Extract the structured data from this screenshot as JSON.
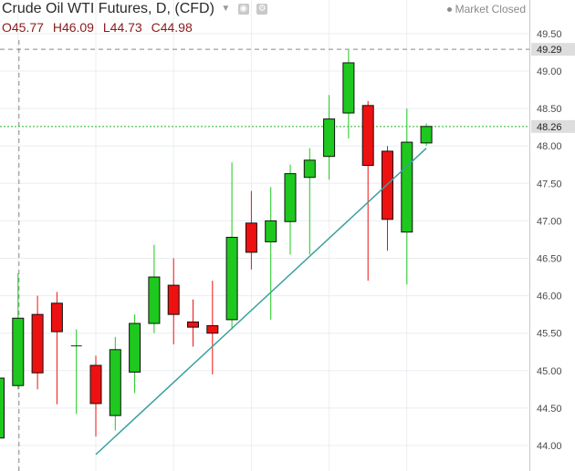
{
  "header": {
    "title": "Crude Oil WTI Futures, D, (CFD)",
    "open": "O45.77",
    "high": "H46.09",
    "low": "L44.73",
    "close": "C44.98",
    "status": "Market Closed"
  },
  "colors": {
    "up": "#1ec81e",
    "down": "#ee1111",
    "grid": "#e9eef2",
    "trendline": "#3aa0a0",
    "horizontal_line": "#22b822",
    "crosshair": "#888888",
    "price_label_bg": "#dddddd"
  },
  "chart_data": {
    "type": "candlestick",
    "title": "Crude Oil WTI Futures, D, (CFD)",
    "ylim": [
      43.8,
      49.6
    ],
    "y_ticks": [
      "44.00",
      "44.50",
      "45.00",
      "45.50",
      "46.00",
      "46.50",
      "47.00",
      "47.50",
      "48.00",
      "48.50",
      "49.00",
      "49.50"
    ],
    "candles": [
      {
        "o": 44.1,
        "h": 45.0,
        "l": 43.8,
        "c": 44.9
      },
      {
        "o": 44.8,
        "h": 46.3,
        "l": 44.75,
        "c": 45.7
      },
      {
        "o": 45.75,
        "h": 46.0,
        "l": 44.75,
        "c": 44.97
      },
      {
        "o": 45.9,
        "h": 46.05,
        "l": 44.55,
        "c": 45.52
      },
      {
        "o": 45.33,
        "h": 45.55,
        "l": 44.42,
        "c": 45.33
      },
      {
        "o": 45.07,
        "h": 45.2,
        "l": 44.12,
        "c": 44.56
      },
      {
        "o": 44.4,
        "h": 45.45,
        "l": 44.2,
        "c": 45.28
      },
      {
        "o": 44.98,
        "h": 45.75,
        "l": 44.7,
        "c": 45.63
      },
      {
        "o": 45.63,
        "h": 46.68,
        "l": 45.5,
        "c": 46.25
      },
      {
        "o": 46.14,
        "h": 46.5,
        "l": 45.35,
        "c": 45.75
      },
      {
        "o": 45.65,
        "h": 45.95,
        "l": 45.32,
        "c": 45.58
      },
      {
        "o": 45.6,
        "h": 46.2,
        "l": 44.95,
        "c": 45.5
      },
      {
        "o": 45.68,
        "h": 47.78,
        "l": 45.55,
        "c": 46.78
      },
      {
        "o": 46.97,
        "h": 47.4,
        "l": 46.35,
        "c": 46.58
      },
      {
        "o": 46.72,
        "h": 47.45,
        "l": 45.68,
        "c": 47.0
      },
      {
        "o": 46.99,
        "h": 47.75,
        "l": 46.55,
        "c": 47.63
      },
      {
        "o": 47.58,
        "h": 47.97,
        "l": 46.55,
        "c": 47.81
      },
      {
        "o": 47.86,
        "h": 48.68,
        "l": 47.55,
        "c": 48.36
      },
      {
        "o": 48.44,
        "h": 49.28,
        "l": 48.1,
        "c": 49.11
      },
      {
        "o": 48.54,
        "h": 48.6,
        "l": 46.2,
        "c": 47.74
      },
      {
        "o": 47.93,
        "h": 48.0,
        "l": 46.6,
        "c": 47.02
      },
      {
        "o": 46.85,
        "h": 48.5,
        "l": 46.15,
        "c": 48.05
      },
      {
        "o": 48.04,
        "h": 48.3,
        "l": 48.0,
        "c": 48.26
      }
    ],
    "price_labels": [
      {
        "value": 49.29,
        "text": "49.29",
        "style": "dashed"
      },
      {
        "value": 48.26,
        "text": "48.26",
        "style": "dotted"
      }
    ],
    "trendline": {
      "from": [
        5,
        43.88
      ],
      "to": [
        22,
        47.97
      ]
    },
    "crosshair_index": 1,
    "grid": true
  }
}
